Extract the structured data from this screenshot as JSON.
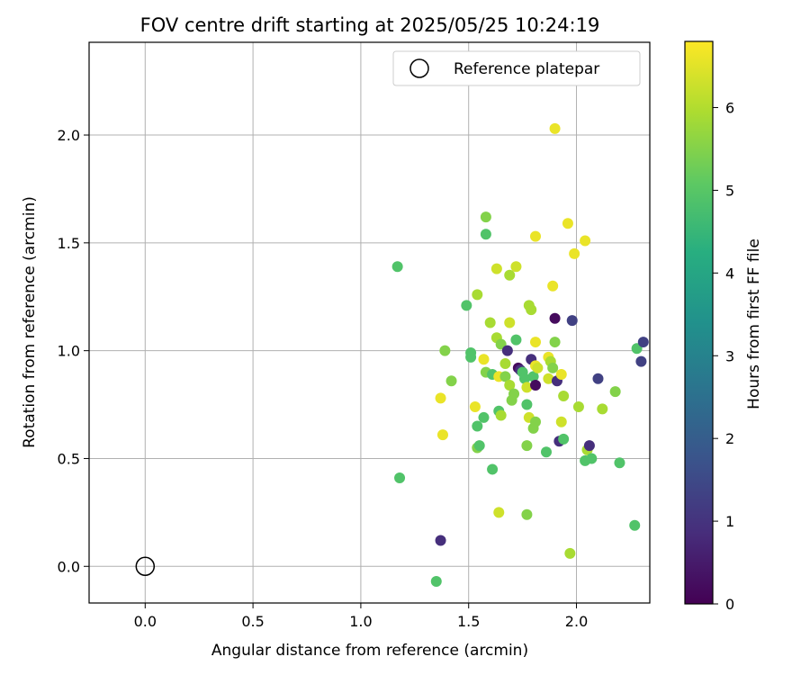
{
  "chart_data": {
    "type": "scatter",
    "title": "FOV centre drift starting at 2025/05/25 10:24:19",
    "xlabel": "Angular distance from reference (arcmin)",
    "ylabel": "Rotation from reference (arcmin)",
    "xlim": [
      -0.26,
      2.34
    ],
    "ylim": [
      -0.17,
      2.43
    ],
    "xticks": [
      "0.0",
      "0.5",
      "1.0",
      "1.5",
      "2.0"
    ],
    "yticks": [
      "0.0",
      "0.5",
      "1.0",
      "1.5",
      "2.0"
    ],
    "grid": true,
    "legend": {
      "position": "top-right",
      "entries": [
        {
          "label": "Reference platepar"
        }
      ]
    },
    "reference": {
      "x": 0.0,
      "y": 0.0
    },
    "colorbar": {
      "label": "Hours from first FF file",
      "min": 0,
      "max": 6.8,
      "ticks": [
        "0",
        "1",
        "2",
        "3",
        "4",
        "5",
        "6"
      ],
      "colormap": "viridis"
    },
    "points": [
      {
        "x": 1.17,
        "y": 1.39,
        "c": 4.9
      },
      {
        "x": 1.18,
        "y": 0.41,
        "c": 4.9
      },
      {
        "x": 1.37,
        "y": 0.12,
        "c": 0.9
      },
      {
        "x": 1.35,
        "y": -0.07,
        "c": 4.9
      },
      {
        "x": 1.37,
        "y": 0.78,
        "c": 6.6
      },
      {
        "x": 1.38,
        "y": 0.61,
        "c": 6.6
      },
      {
        "x": 1.39,
        "y": 1.0,
        "c": 5.5
      },
      {
        "x": 1.42,
        "y": 0.86,
        "c": 5.5
      },
      {
        "x": 1.49,
        "y": 1.21,
        "c": 4.9
      },
      {
        "x": 1.51,
        "y": 0.99,
        "c": 4.9
      },
      {
        "x": 1.51,
        "y": 0.97,
        "c": 4.9
      },
      {
        "x": 1.53,
        "y": 0.74,
        "c": 6.6
      },
      {
        "x": 1.54,
        "y": 1.26,
        "c": 5.9
      },
      {
        "x": 1.54,
        "y": 0.65,
        "c": 4.9
      },
      {
        "x": 1.54,
        "y": 0.55,
        "c": 5.5
      },
      {
        "x": 1.55,
        "y": 0.56,
        "c": 4.9
      },
      {
        "x": 1.57,
        "y": 0.96,
        "c": 6.6
      },
      {
        "x": 1.57,
        "y": 0.69,
        "c": 4.9
      },
      {
        "x": 1.58,
        "y": 1.62,
        "c": 5.5
      },
      {
        "x": 1.58,
        "y": 1.54,
        "c": 4.9
      },
      {
        "x": 1.58,
        "y": 0.9,
        "c": 5.5
      },
      {
        "x": 1.6,
        "y": 1.13,
        "c": 5.9
      },
      {
        "x": 1.61,
        "y": 0.45,
        "c": 4.9
      },
      {
        "x": 1.61,
        "y": 0.89,
        "c": 4.9
      },
      {
        "x": 1.63,
        "y": 1.38,
        "c": 6.3
      },
      {
        "x": 1.63,
        "y": 1.06,
        "c": 5.9
      },
      {
        "x": 1.64,
        "y": 0.88,
        "c": 6.6
      },
      {
        "x": 1.64,
        "y": 0.72,
        "c": 4.9
      },
      {
        "x": 1.64,
        "y": 0.25,
        "c": 6.3
      },
      {
        "x": 1.65,
        "y": 1.03,
        "c": 5.5
      },
      {
        "x": 1.65,
        "y": 0.7,
        "c": 5.9
      },
      {
        "x": 1.67,
        "y": 0.94,
        "c": 5.9
      },
      {
        "x": 1.67,
        "y": 0.88,
        "c": 5.5
      },
      {
        "x": 1.68,
        "y": 1.0,
        "c": 0.9
      },
      {
        "x": 1.69,
        "y": 1.35,
        "c": 5.9
      },
      {
        "x": 1.69,
        "y": 1.13,
        "c": 6.3
      },
      {
        "x": 1.69,
        "y": 0.84,
        "c": 5.9
      },
      {
        "x": 1.7,
        "y": 0.77,
        "c": 5.5
      },
      {
        "x": 1.71,
        "y": 0.8,
        "c": 5.5
      },
      {
        "x": 1.72,
        "y": 1.39,
        "c": 6.3
      },
      {
        "x": 1.72,
        "y": 1.05,
        "c": 4.9
      },
      {
        "x": 1.73,
        "y": 0.92,
        "c": 0.2
      },
      {
        "x": 1.74,
        "y": 0.91,
        "c": 0.9
      },
      {
        "x": 1.75,
        "y": 0.9,
        "c": 4.9
      },
      {
        "x": 1.76,
        "y": 0.87,
        "c": 4.9
      },
      {
        "x": 1.77,
        "y": 0.83,
        "c": 6.3
      },
      {
        "x": 1.77,
        "y": 0.75,
        "c": 4.9
      },
      {
        "x": 1.77,
        "y": 0.56,
        "c": 5.5
      },
      {
        "x": 1.77,
        "y": 0.24,
        "c": 5.5
      },
      {
        "x": 1.78,
        "y": 1.21,
        "c": 5.9
      },
      {
        "x": 1.78,
        "y": 0.69,
        "c": 6.3
      },
      {
        "x": 1.79,
        "y": 1.19,
        "c": 5.9
      },
      {
        "x": 1.79,
        "y": 0.96,
        "c": 0.9
      },
      {
        "x": 1.8,
        "y": 0.88,
        "c": 4.9
      },
      {
        "x": 1.8,
        "y": 0.64,
        "c": 5.5
      },
      {
        "x": 1.81,
        "y": 1.53,
        "c": 6.6
      },
      {
        "x": 1.81,
        "y": 1.04,
        "c": 6.6
      },
      {
        "x": 1.81,
        "y": 0.93,
        "c": 6.6
      },
      {
        "x": 1.81,
        "y": 0.84,
        "c": 0.2
      },
      {
        "x": 1.81,
        "y": 0.67,
        "c": 5.5
      },
      {
        "x": 1.82,
        "y": 0.92,
        "c": 6.3
      },
      {
        "x": 1.86,
        "y": 0.53,
        "c": 4.9
      },
      {
        "x": 1.87,
        "y": 0.97,
        "c": 6.6
      },
      {
        "x": 1.87,
        "y": 0.87,
        "c": 6.3
      },
      {
        "x": 1.88,
        "y": 0.95,
        "c": 5.9
      },
      {
        "x": 1.89,
        "y": 1.3,
        "c": 6.6
      },
      {
        "x": 1.89,
        "y": 0.92,
        "c": 5.5
      },
      {
        "x": 1.9,
        "y": 1.15,
        "c": 0.2
      },
      {
        "x": 1.9,
        "y": 2.03,
        "c": 6.6
      },
      {
        "x": 1.9,
        "y": 1.04,
        "c": 5.5
      },
      {
        "x": 1.91,
        "y": 0.86,
        "c": 0.9
      },
      {
        "x": 1.92,
        "y": 0.58,
        "c": 0.9
      },
      {
        "x": 1.93,
        "y": 0.89,
        "c": 6.6
      },
      {
        "x": 1.93,
        "y": 0.67,
        "c": 6.3
      },
      {
        "x": 1.94,
        "y": 0.79,
        "c": 5.9
      },
      {
        "x": 1.94,
        "y": 0.59,
        "c": 4.9
      },
      {
        "x": 1.96,
        "y": 1.59,
        "c": 6.6
      },
      {
        "x": 1.97,
        "y": 0.06,
        "c": 5.9
      },
      {
        "x": 1.98,
        "y": 1.14,
        "c": 1.3
      },
      {
        "x": 1.99,
        "y": 1.45,
        "c": 6.6
      },
      {
        "x": 2.01,
        "y": 0.74,
        "c": 5.9
      },
      {
        "x": 2.04,
        "y": 1.51,
        "c": 6.6
      },
      {
        "x": 2.04,
        "y": 0.49,
        "c": 4.9
      },
      {
        "x": 2.05,
        "y": 0.54,
        "c": 5.9
      },
      {
        "x": 2.06,
        "y": 0.56,
        "c": 0.9
      },
      {
        "x": 2.07,
        "y": 0.5,
        "c": 4.9
      },
      {
        "x": 2.1,
        "y": 0.87,
        "c": 1.3
      },
      {
        "x": 2.12,
        "y": 0.73,
        "c": 5.9
      },
      {
        "x": 2.18,
        "y": 0.81,
        "c": 5.5
      },
      {
        "x": 2.2,
        "y": 0.48,
        "c": 4.9
      },
      {
        "x": 2.27,
        "y": 0.19,
        "c": 4.9
      },
      {
        "x": 2.28,
        "y": 1.01,
        "c": 4.9
      },
      {
        "x": 2.3,
        "y": 0.95,
        "c": 1.3
      },
      {
        "x": 2.31,
        "y": 1.04,
        "c": 1.3
      }
    ]
  }
}
